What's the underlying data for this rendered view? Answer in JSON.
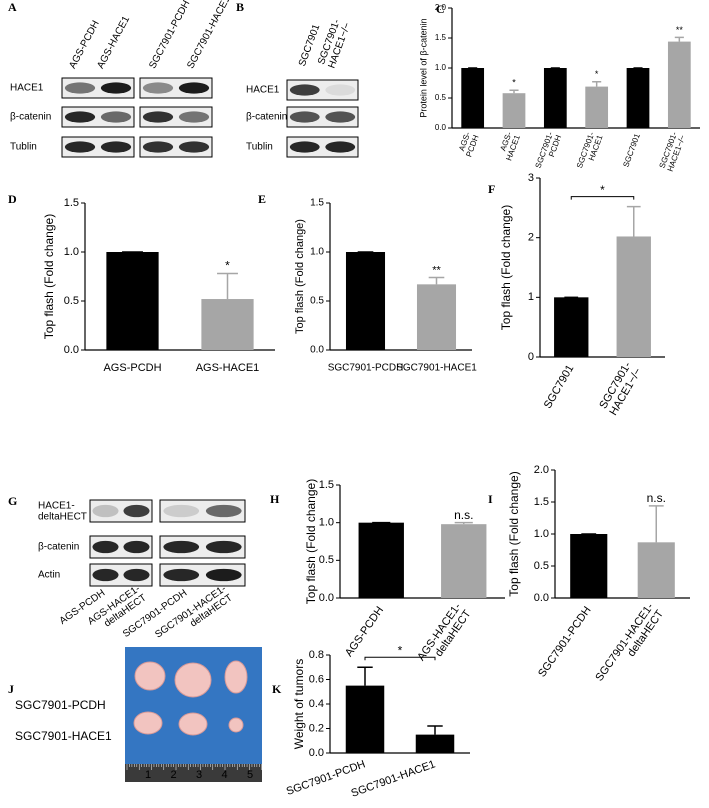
{
  "blots": [
    {
      "panel": "A",
      "lanes": [
        "AGS-PCDH",
        "AGS-HACE1",
        "SGC7901-PCDH",
        "SGC7901-HACE1"
      ],
      "rows": [
        "HACE1",
        "β-catenin",
        "Tublin"
      ]
    },
    {
      "panel": "B",
      "lanes": [
        "SGC7901",
        "SGC7901-HACE1−/−"
      ],
      "rows": [
        "HACE1",
        "β-catenin",
        "Tublin"
      ]
    },
    {
      "panel": "G",
      "lanes": [
        "AGS-PCDH",
        "AGS-HACE1-deltaHECT",
        "SGC7901-PCDH",
        "SGC7901-HACE1-deltaHECT"
      ],
      "rows": [
        "HACE1-deltaHECT",
        "β-catenin",
        "Actin"
      ]
    }
  ],
  "tumor_photo": {
    "panel": "J",
    "rows": [
      "SGC7901-PCDH",
      "SGC7901-HACE1"
    ],
    "ruler": [
      "1",
      "2",
      "3",
      "4",
      "5"
    ]
  },
  "chart_data": [
    {
      "panel": "C",
      "type": "bar",
      "y_label": "Protein level of β-catenin",
      "categories": [
        "AGS-PCDH",
        "AGS-HACE1",
        "SGC7901-PCDH",
        "SGC7901-HACE1",
        "SGC7901",
        "SGC7901-HACE1−/−"
      ],
      "values": [
        1,
        0.58,
        1,
        0.69,
        1,
        1.44
      ],
      "errors": [
        0,
        0.05,
        0,
        0.08,
        0,
        0.07
      ],
      "colors": [
        "#000000",
        "#a6a6a6",
        "#000000",
        "#a6a6a6",
        "#000000",
        "#a6a6a6"
      ],
      "ylim": [
        0,
        2
      ],
      "yticks": [
        {
          "value": 0,
          "label": "0.0"
        },
        0.5,
        {
          "value": 1,
          "label": "1.0"
        },
        1.5,
        {
          "value": 2,
          "label": "2.0"
        }
      ],
      "annotations": [
        {
          "categories": [
            "AGS-HACE1"
          ],
          "text": "*"
        },
        {
          "categories": [
            "SGC7901-HACE1"
          ],
          "text": "*"
        },
        {
          "categories": [
            "SGC7901-HACE1−/−"
          ],
          "text": "**"
        }
      ]
    },
    {
      "panel": "D",
      "type": "bar",
      "y_label": "Top flash (Fold change)",
      "categories": [
        "AGS-PCDH",
        "AGS-HACE1"
      ],
      "values": [
        1,
        0.52
      ],
      "errors": [
        0,
        0.26
      ],
      "colors": [
        "#000000",
        "#a6a6a6"
      ],
      "ylim": [
        0,
        1.5
      ],
      "yticks": [
        {
          "value": 0,
          "label": "0.0"
        },
        0.5,
        {
          "value": 1,
          "label": "1.0"
        },
        1.5
      ],
      "annotations": [
        {
          "categories": [
            "AGS-HACE1"
          ],
          "text": "*"
        }
      ]
    },
    {
      "panel": "E",
      "type": "bar",
      "y_label": "Top flash (Fold change)",
      "categories": [
        "SGC7901-PCDH",
        "SGC7901-HACE1"
      ],
      "values": [
        1,
        0.67
      ],
      "errors": [
        0,
        0.07
      ],
      "colors": [
        "#000000",
        "#a6a6a6"
      ],
      "ylim": [
        0,
        1.5
      ],
      "yticks": [
        {
          "value": 0,
          "label": "0.0"
        },
        0.5,
        {
          "value": 1,
          "label": "1.0"
        },
        1.5
      ],
      "annotations": [
        {
          "categories": [
            "SGC7901-HACE1"
          ],
          "text": "**"
        }
      ]
    },
    {
      "panel": "F",
      "type": "bar",
      "y_label": "Top flash (Fold change)",
      "categories": [
        "SGC7901",
        "SGC7901-HACE1−/−"
      ],
      "values": [
        1,
        2.02
      ],
      "errors": [
        0,
        0.5
      ],
      "colors": [
        "#000000",
        "#a6a6a6"
      ],
      "ylim": [
        0,
        3
      ],
      "yticks": [
        0,
        1,
        2,
        3
      ],
      "annotations": [
        {
          "categories": [
            "SGC7901",
            "SGC7901-HACE1−/−"
          ],
          "text": "*"
        }
      ]
    },
    {
      "panel": "H",
      "type": "bar",
      "y_label": "Top flash (Fold change)",
      "categories": [
        "AGS-PCDH",
        "AGS-HACE1-deltaHECT"
      ],
      "values": [
        1,
        0.98
      ],
      "errors": [
        0,
        0.02
      ],
      "colors": [
        "#000000",
        "#a6a6a6"
      ],
      "ylim": [
        0,
        1.5
      ],
      "yticks": [
        {
          "value": 0,
          "label": "0.0"
        },
        0.5,
        {
          "value": 1,
          "label": "1.0"
        },
        1.5
      ],
      "annotations": [
        {
          "categories": [
            "AGS-HACE1-deltaHECT"
          ],
          "text": "n.s."
        }
      ]
    },
    {
      "panel": "I",
      "type": "bar",
      "y_label": "Top flash (Fold change)",
      "categories": [
        "SGC7901-PCDH",
        "SGC7901-HACE1-deltaHECT"
      ],
      "values": [
        1,
        0.87
      ],
      "errors": [
        0,
        0.57
      ],
      "colors": [
        "#000000",
        "#a6a6a6"
      ],
      "ylim": [
        0,
        2
      ],
      "yticks": [
        {
          "value": 0,
          "label": "0.0"
        },
        0.5,
        {
          "value": 1,
          "label": "1.0"
        },
        1.5,
        {
          "value": 2,
          "label": "2.0"
        }
      ],
      "annotations": [
        {
          "categories": [
            "SGC7901-HACE1-deltaHECT"
          ],
          "text": "n.s."
        }
      ]
    },
    {
      "panel": "K",
      "type": "bar",
      "y_label": "Weight of tumors",
      "categories": [
        "SGC7901-PCDH",
        "SGC7901-HACE1"
      ],
      "values": [
        0.55,
        0.15
      ],
      "errors": [
        0.15,
        0.07
      ],
      "colors": [
        "#000000",
        "#000000"
      ],
      "ylim": [
        0,
        0.8
      ],
      "yticks": [
        {
          "value": 0,
          "label": "0.0"
        },
        0.2,
        0.4,
        0.6,
        0.8
      ],
      "annotations": [
        {
          "categories": [
            "SGC7901-PCDH",
            "SGC7901-HACE1"
          ],
          "text": "*"
        }
      ]
    }
  ]
}
